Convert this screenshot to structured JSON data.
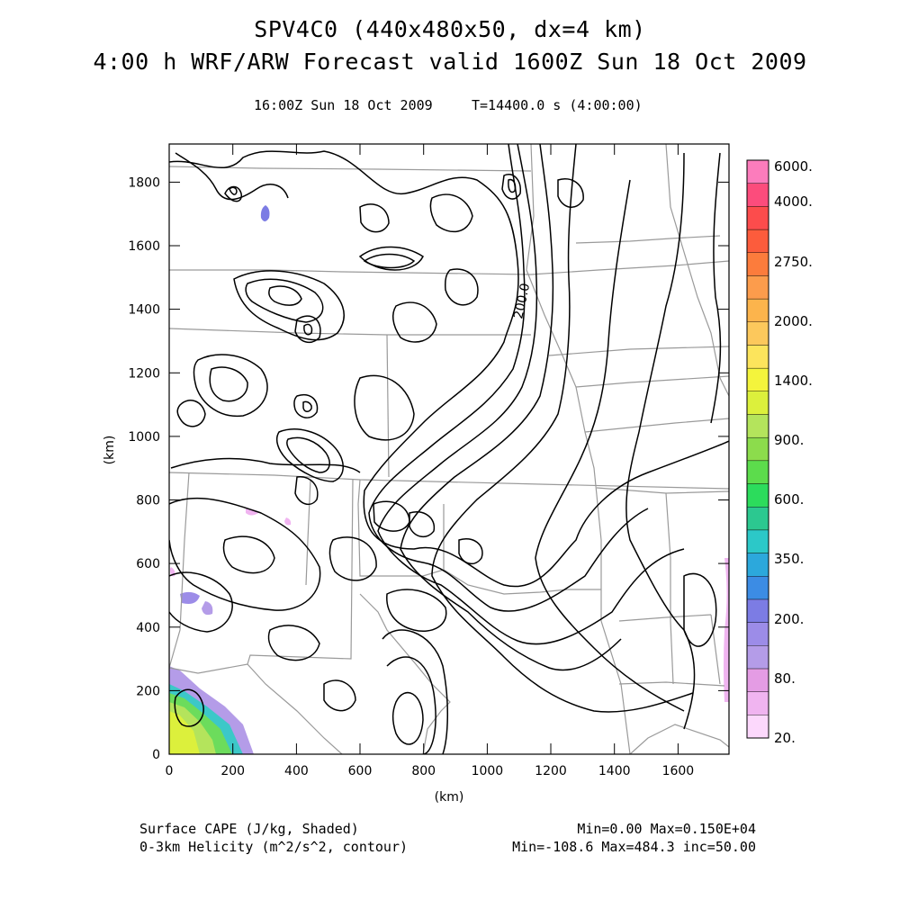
{
  "titles": {
    "line1": "SPV4C0 (440x480x50, dx=4 km)",
    "line2": "4:00 h WRF/ARW Forecast valid 1600Z Sun 18 Oct 2009",
    "valid_time": "16:00Z Sun 18 Oct 2009",
    "model_time": "T=14400.0 s (4:00:00)"
  },
  "axes": {
    "xlabel": "(km)",
    "ylabel": "(km)",
    "xlim": [
      0,
      1760
    ],
    "ylim": [
      0,
      1920
    ],
    "xticks": [
      "0",
      "200",
      "400",
      "600",
      "800",
      "1000",
      "1200",
      "1400",
      "1600"
    ],
    "yticks": [
      "0",
      "200",
      "400",
      "600",
      "800",
      "1000",
      "1200",
      "1400",
      "1600",
      "1800"
    ]
  },
  "colorbar": {
    "labels": [
      "20.",
      "80.",
      "200.",
      "350.",
      "600.",
      "900.",
      "1400.",
      "2000.",
      "2750.",
      "4000.",
      "6000."
    ],
    "colors": [
      "#fcd8fc",
      "#f0b4f0",
      "#e49ce4",
      "#b49ce8",
      "#9c8ce8",
      "#7c7ce4",
      "#3c8ce4",
      "#2ca8dc",
      "#2cc8c8",
      "#2cc890",
      "#2cdc5c",
      "#5cdc4c",
      "#8cdc4c",
      "#b4e45c",
      "#dcf03c",
      "#f4f43c",
      "#fce45c",
      "#fcc85c",
      "#fcb44c",
      "#fc9c4c",
      "#fc7c3c",
      "#fc5c3c",
      "#fc4c4c",
      "#fc4c7c",
      "#fc7cbc"
    ]
  },
  "contour_label": "200.0",
  "footer": {
    "cape_desc": "Surface CAPE (J/kg, Shaded)",
    "cape_stats": "Min=0.00 Max=0.150E+04",
    "helicity_desc": "0-3km Helicity (m^2/s^2, contour)",
    "helicity_stats": "Min=-108.6 Max=484.3 inc=50.00"
  }
}
